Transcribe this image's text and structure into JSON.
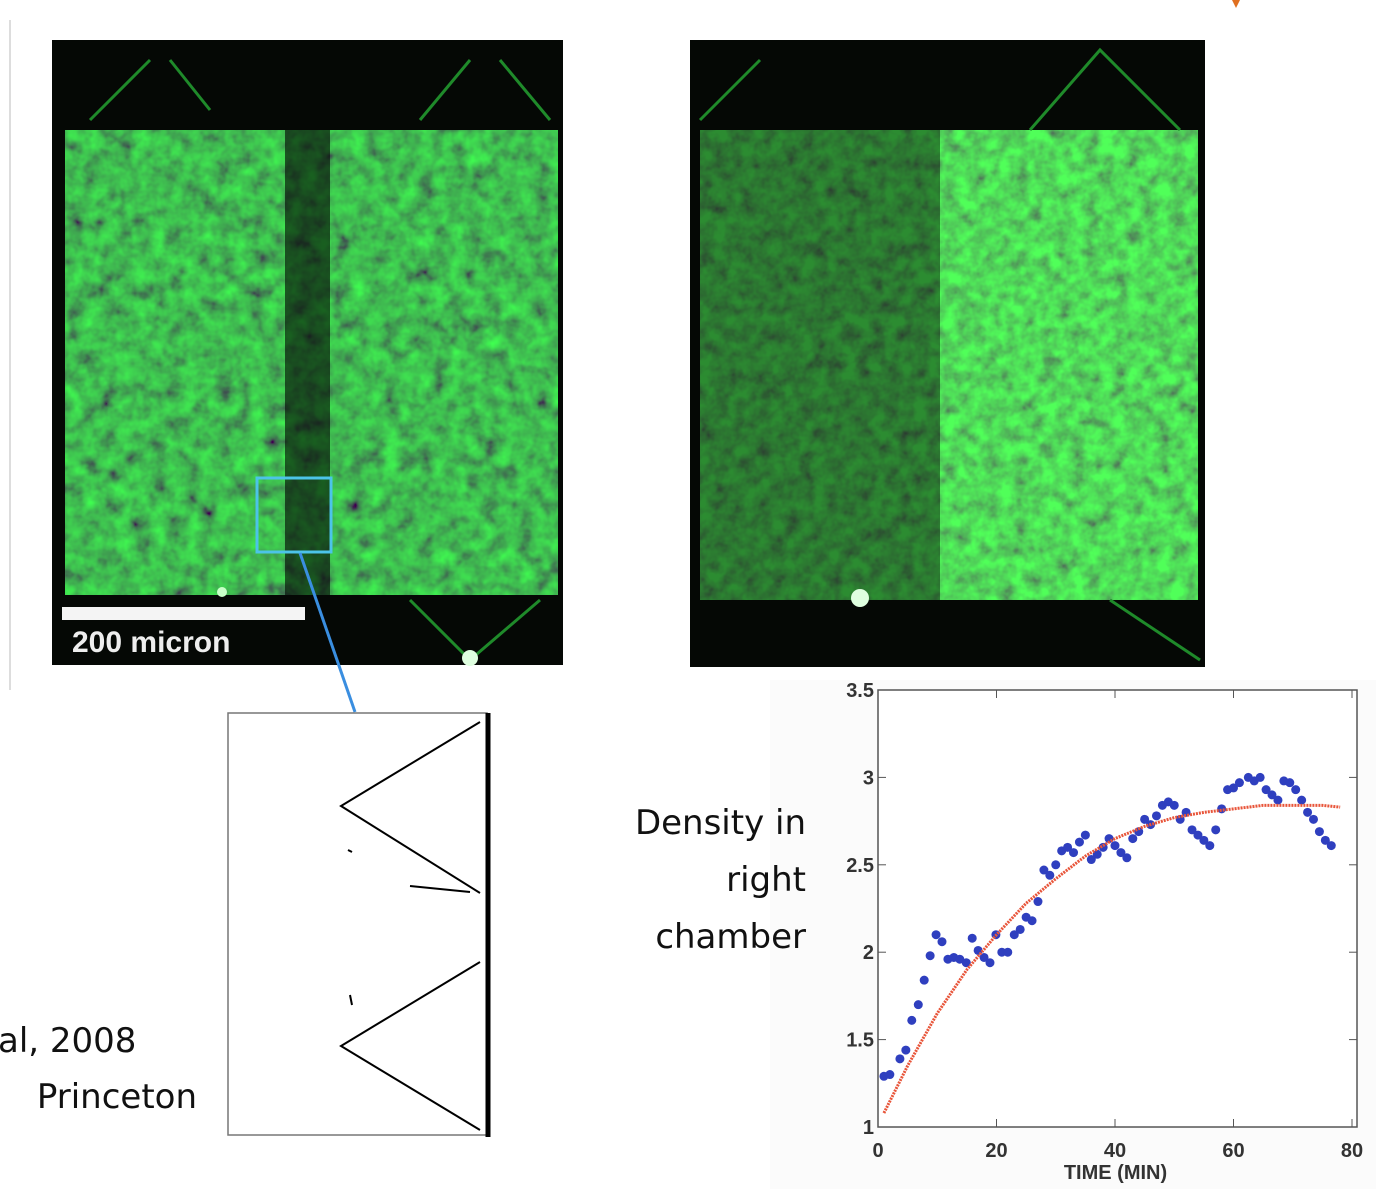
{
  "labels": {
    "scale_bar": "200 micron",
    "citation_year": "al, 2008",
    "citation_place": "Princeton"
  },
  "chart_data": {
    "type": "scatter",
    "ylabel": [
      "Density in",
      "right",
      "chamber"
    ],
    "xlabel": "TIME (MIN)",
    "xlim": [
      0,
      80
    ],
    "xticks": [
      0,
      20,
      40,
      60,
      80
    ],
    "ylim": [
      1,
      3.5
    ],
    "yticks": [
      1,
      1.5,
      2,
      2.5,
      3,
      3.5
    ],
    "series": [
      {
        "type": "scatter",
        "color": "#2f3fbf",
        "x": [
          1,
          2,
          3.7,
          4.7,
          5.7,
          6.8,
          7.8,
          8.8,
          9.8,
          10.8,
          11.8,
          12.8,
          13.8,
          14.9,
          15.9,
          16.9,
          17.9,
          18.9,
          19.9,
          20.9,
          21.9,
          23,
          24,
          25,
          26,
          27,
          28,
          29,
          30,
          31,
          32,
          33,
          34,
          35,
          36,
          37,
          38,
          39,
          40,
          41,
          42,
          43,
          44,
          45,
          46,
          47,
          48,
          49,
          50,
          51,
          52,
          53,
          54,
          55,
          56,
          57,
          58,
          59,
          60,
          61,
          62.5,
          63.5,
          64.5,
          65.5,
          66.5,
          67.5,
          68.5,
          69.5,
          70.5,
          71.5,
          72.5,
          73.5,
          74.5,
          75.5,
          76.5
        ],
        "values": [
          1.29,
          1.3,
          1.39,
          1.44,
          1.61,
          1.7,
          1.84,
          1.98,
          2.1,
          2.06,
          1.96,
          1.97,
          1.96,
          1.94,
          2.08,
          2.01,
          1.97,
          1.94,
          2.1,
          2,
          2,
          2.1,
          2.13,
          2.2,
          2.18,
          2.29,
          2.47,
          2.44,
          2.5,
          2.58,
          2.6,
          2.57,
          2.63,
          2.67,
          2.53,
          2.56,
          2.6,
          2.65,
          2.61,
          2.57,
          2.54,
          2.65,
          2.69,
          2.76,
          2.73,
          2.78,
          2.84,
          2.86,
          2.84,
          2.76,
          2.8,
          2.7,
          2.67,
          2.64,
          2.61,
          2.7,
          2.82,
          2.93,
          2.94,
          2.97,
          3,
          2.98,
          3,
          2.93,
          2.9,
          2.87,
          2.98,
          2.97,
          2.93,
          2.87,
          2.8,
          2.76,
          2.69,
          2.64,
          2.61
        ]
      },
      {
        "type": "line",
        "color": "#e8553a",
        "x": [
          1,
          5,
          10,
          15,
          20,
          25,
          30,
          35,
          40,
          45,
          50,
          55,
          60,
          65,
          70,
          75,
          78
        ],
        "values": [
          1.08,
          1.35,
          1.65,
          1.9,
          2.1,
          2.28,
          2.42,
          2.55,
          2.65,
          2.72,
          2.77,
          2.8,
          2.82,
          2.84,
          2.84,
          2.84,
          2.83
        ]
      }
    ]
  }
}
